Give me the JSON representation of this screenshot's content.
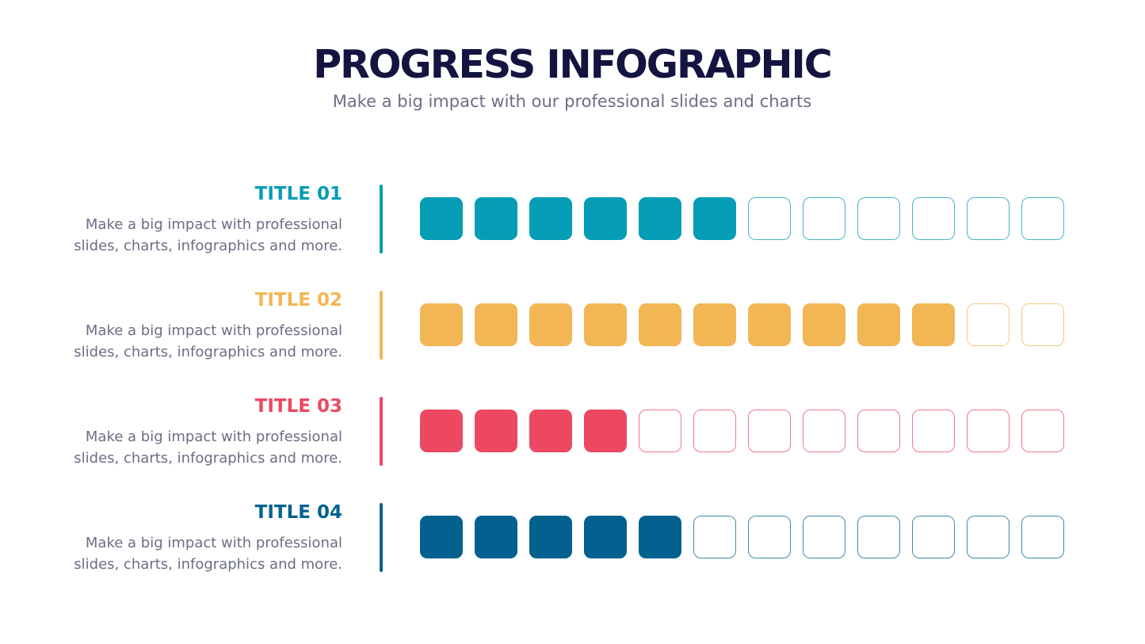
{
  "header": {
    "title": "PROGRESS INFOGRAPHIC",
    "subtitle": "Make a big impact with our professional slides and charts"
  },
  "items": [
    {
      "title": "TITLE 01",
      "description": [
        "Make a big impact with professional",
        "slides, charts, infographics and more."
      ],
      "color": "#049db5",
      "filled": 6,
      "total": 12
    },
    {
      "title": "TITLE 02",
      "description": [
        "Make a big impact with professional",
        "slides, charts, infographics and more."
      ],
      "color": "#f2b655",
      "filled": 10,
      "total": 12
    },
    {
      "title": "TITLE 03",
      "description": [
        "Make a big impact with professional",
        "slides, charts, infographics and more."
      ],
      "color": "#ec4862",
      "filled": 4,
      "total": 12
    },
    {
      "title": "TITLE 04",
      "description": [
        "Make a big impact with professional",
        "slides, charts, infographics and more."
      ],
      "color": "#02618f",
      "filled": 5,
      "total": 12
    }
  ]
}
